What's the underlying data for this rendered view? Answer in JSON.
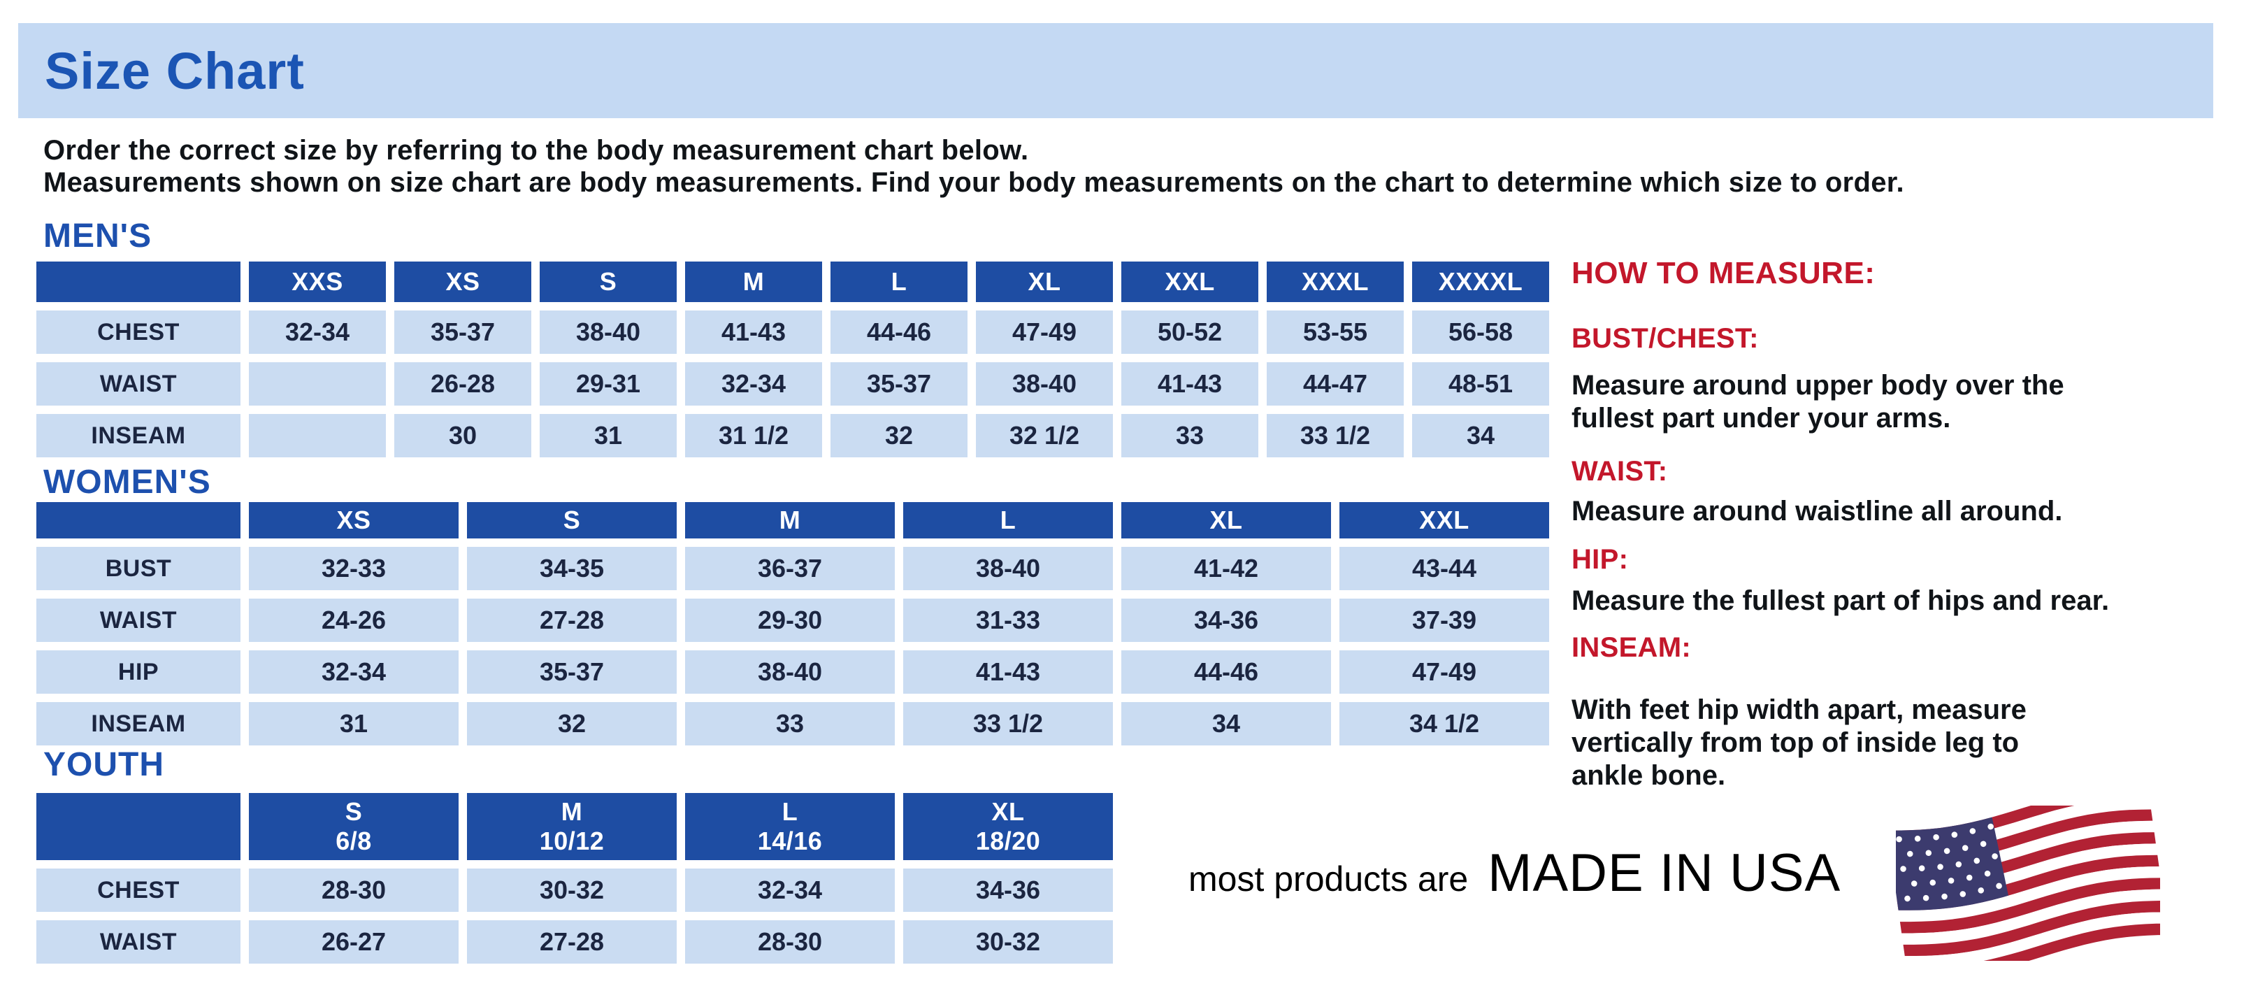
{
  "header": {
    "title": "Size Chart",
    "intro_lines": [
      "Order the correct size by referring to the body measurement chart below.",
      "Measurements shown on size chart are body measurements.  Find your body measurements on the chart to determine which size to order."
    ]
  },
  "tables": [
    {
      "id": "mens",
      "heading": "MEN'S",
      "columns": [
        "",
        "XXS",
        "XS",
        "S",
        "M",
        "L",
        "XL",
        "XXL",
        "XXXL",
        "XXXXL"
      ],
      "rows": [
        [
          "CHEST",
          "32-34",
          "35-37",
          "38-40",
          "41-43",
          "44-46",
          "47-49",
          "50-52",
          "53-55",
          "56-58"
        ],
        [
          "WAIST",
          "",
          "26-28",
          "29-31",
          "32-34",
          "35-37",
          "38-40",
          "41-43",
          "44-47",
          "48-51"
        ],
        [
          "INSEAM",
          "",
          "30",
          "31",
          "31 1/2",
          "32",
          "32 1/2",
          "33",
          "33 1/2",
          "34"
        ]
      ]
    },
    {
      "id": "womens",
      "heading": "WOMEN'S",
      "columns": [
        "",
        "XS",
        "S",
        "M",
        "L",
        "XL",
        "XXL"
      ],
      "rows": [
        [
          "BUST",
          "32-33",
          "34-35",
          "36-37",
          "38-40",
          "41-42",
          "43-44"
        ],
        [
          "WAIST",
          "24-26",
          "27-28",
          "29-30",
          "31-33",
          "34-36",
          "37-39"
        ],
        [
          "HIP",
          "32-34",
          "35-37",
          "38-40",
          "41-43",
          "44-46",
          "47-49"
        ],
        [
          "INSEAM",
          "31",
          "32",
          "33",
          "33 1/2",
          "34",
          "34 1/2"
        ]
      ]
    },
    {
      "id": "youth",
      "heading": "YOUTH",
      "columns": [
        "",
        "S\n6/8",
        "M\n10/12",
        "L\n14/16",
        "XL\n18/20"
      ],
      "rows": [
        [
          "CHEST",
          "28-30",
          "30-32",
          "32-34",
          "34-36"
        ],
        [
          "WAIST",
          "26-27",
          "27-28",
          "28-30",
          "30-32"
        ]
      ]
    }
  ],
  "how_to_measure": {
    "heading": "HOW TO MEASURE:",
    "items": [
      {
        "label": "BUST/CHEST:",
        "text": "Measure around upper body over the\nfullest part under your arms."
      },
      {
        "label": "WAIST:",
        "text": "Measure around waistline all around."
      },
      {
        "label": "HIP:",
        "text": "Measure the fullest part of hips and rear."
      },
      {
        "label": "INSEAM:",
        "text": "With feet hip width apart, measure\nvertically from top of inside leg to\nankle bone."
      }
    ]
  },
  "footer": {
    "prefix": "most products are",
    "made_in": "MADE IN USA",
    "flag_icon": "usa-flag-icon"
  },
  "colors": {
    "banner_bg": "#c4d9f3",
    "title_blue": "#1b55b4",
    "heading_blue": "#1d50ae",
    "header_bg": "#1e4da3",
    "header_text": "#ffffff",
    "cell_bg": "#cadcf2",
    "cell_text": "#1b2540",
    "accent_red": "#c3172b",
    "body_text": "#101418",
    "flag_red": "#b22234",
    "flag_blue": "#3c3b6e"
  }
}
